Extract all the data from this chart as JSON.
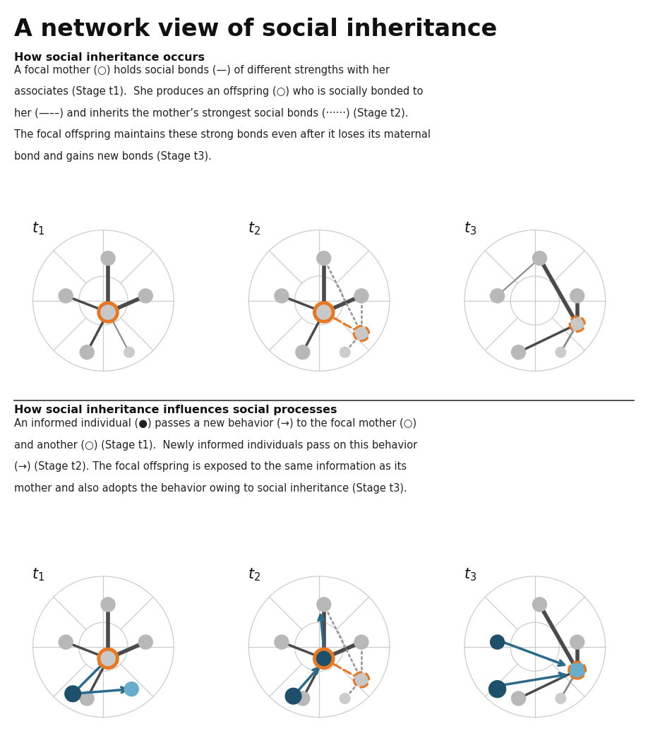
{
  "title": "A network view of social inheritance",
  "section1_title": "How social inheritance occurs",
  "section2_title": "How social inheritance influences social processes",
  "gray_node": "#b8b8b8",
  "orange_ring": "#e87722",
  "dark_gray_edge": "#4a4a4a",
  "medium_gray_edge": "#888888",
  "teal_arrow": "#2b6a8a",
  "dark_teal_node": "#1e4f6b",
  "light_teal_node": "#6aadca",
  "bg_color": "#ffffff",
  "grid_color": "#cccccc",
  "text_color": "#222222",
  "title_color": "#111111"
}
